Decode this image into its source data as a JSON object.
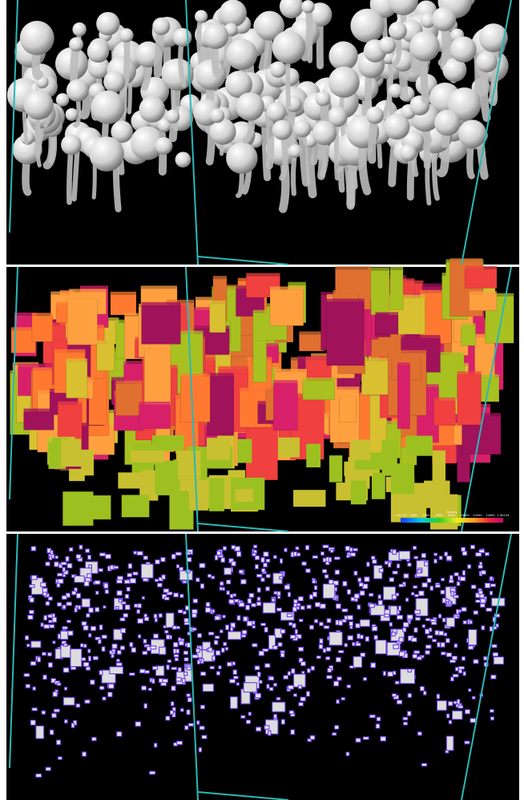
{
  "colorbar": {
    "title": "Density",
    "ticks": [
      "1.0e+00",
      "2000",
      "4000",
      "6000",
      "8000",
      "10000",
      "12000",
      "14000",
      "1.5e+04"
    ]
  }
}
